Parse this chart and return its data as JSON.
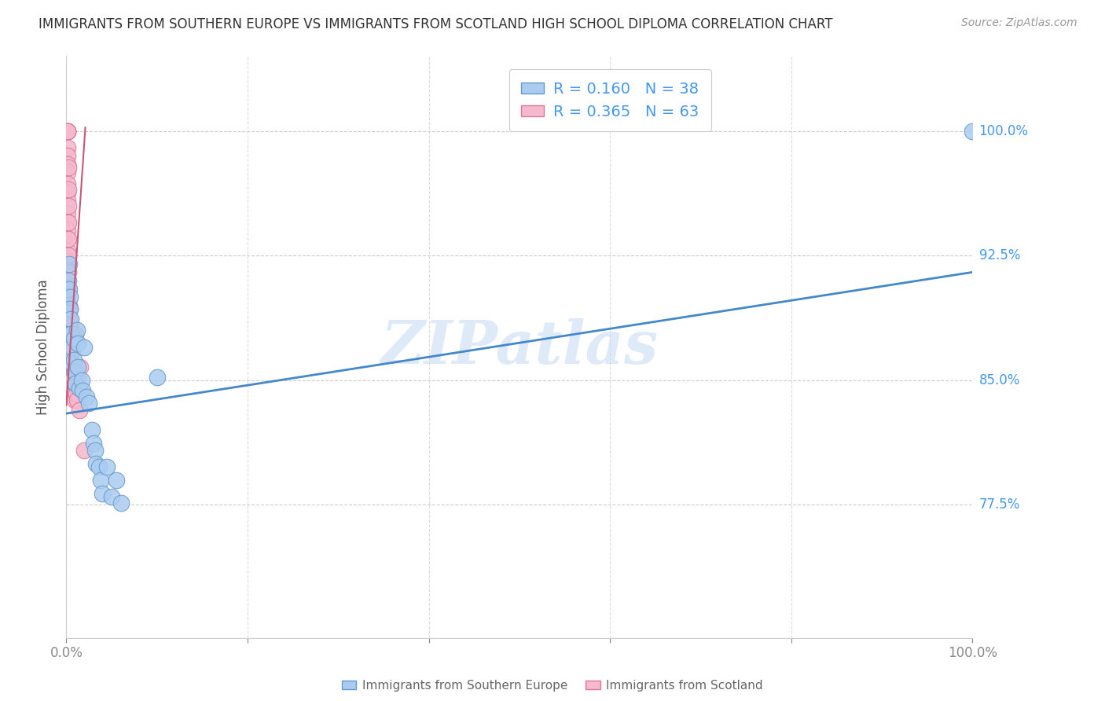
{
  "title": "IMMIGRANTS FROM SOUTHERN EUROPE VS IMMIGRANTS FROM SCOTLAND HIGH SCHOOL DIPLOMA CORRELATION CHART",
  "source": "Source: ZipAtlas.com",
  "ylabel": "High School Diploma",
  "watermark": "ZIPatlas",
  "blue_color": "#aaccf0",
  "pink_color": "#f5b8cc",
  "blue_edge_color": "#6699cc",
  "pink_edge_color": "#dd7799",
  "blue_line_color": "#4488cc",
  "pink_line_color": "#cc5577",
  "blue_scatter_x": [
    0.001,
    0.001,
    0.002,
    0.002,
    0.003,
    0.003,
    0.004,
    0.004,
    0.005,
    0.005,
    0.006,
    0.007,
    0.008,
    0.008,
    0.009,
    0.01,
    0.012,
    0.013,
    0.013,
    0.014,
    0.017,
    0.018,
    0.02,
    0.022,
    0.025,
    0.028,
    0.03,
    0.032,
    0.033,
    0.036,
    0.038,
    0.04,
    0.045,
    0.05,
    0.055,
    0.06,
    0.1,
    1.0
  ],
  "blue_scatter_y": [
    0.878,
    0.862,
    0.91,
    0.893,
    0.92,
    0.905,
    0.9,
    0.893,
    0.887,
    0.878,
    0.87,
    0.86,
    0.875,
    0.862,
    0.855,
    0.848,
    0.88,
    0.872,
    0.858,
    0.845,
    0.85,
    0.844,
    0.87,
    0.84,
    0.836,
    0.82,
    0.812,
    0.808,
    0.8,
    0.798,
    0.79,
    0.782,
    0.798,
    0.78,
    0.79,
    0.776,
    0.852,
    1.0
  ],
  "pink_scatter_x": [
    0.001,
    0.001,
    0.001,
    0.001,
    0.001,
    0.001,
    0.001,
    0.001,
    0.001,
    0.001,
    0.001,
    0.001,
    0.001,
    0.001,
    0.001,
    0.001,
    0.001,
    0.001,
    0.001,
    0.001,
    0.001,
    0.001,
    0.001,
    0.001,
    0.002,
    0.002,
    0.002,
    0.002,
    0.002,
    0.002,
    0.002,
    0.002,
    0.002,
    0.003,
    0.003,
    0.003,
    0.003,
    0.003,
    0.003,
    0.004,
    0.004,
    0.004,
    0.004,
    0.004,
    0.005,
    0.005,
    0.005,
    0.006,
    0.006,
    0.006,
    0.007,
    0.007,
    0.008,
    0.008,
    0.009,
    0.009,
    0.01,
    0.011,
    0.012,
    0.013,
    0.014,
    0.015,
    0.02
  ],
  "pink_scatter_y": [
    1.0,
    1.0,
    1.0,
    1.0,
    1.0,
    0.99,
    0.985,
    0.98,
    0.975,
    0.968,
    0.963,
    0.958,
    0.95,
    0.945,
    0.94,
    0.935,
    0.928,
    0.922,
    0.916,
    0.91,
    0.905,
    0.9,
    0.895,
    0.89,
    0.978,
    0.965,
    0.955,
    0.945,
    0.935,
    0.925,
    0.915,
    0.905,
    0.895,
    0.895,
    0.888,
    0.882,
    0.875,
    0.868,
    0.862,
    0.893,
    0.885,
    0.875,
    0.866,
    0.858,
    0.882,
    0.87,
    0.86,
    0.88,
    0.87,
    0.86,
    0.868,
    0.858,
    0.855,
    0.842,
    0.848,
    0.838,
    0.878,
    0.842,
    0.838,
    0.852,
    0.832,
    0.858,
    0.808
  ],
  "blue_line_x": [
    0.0,
    1.0
  ],
  "blue_line_y": [
    0.83,
    0.915
  ],
  "pink_line_x": [
    0.0,
    0.021
  ],
  "pink_line_y": [
    0.835,
    1.002
  ],
  "xlim": [
    0.0,
    1.0
  ],
  "ylim": [
    0.695,
    1.045
  ],
  "ytick_positions": [
    0.775,
    0.85,
    0.925,
    1.0
  ],
  "ytick_labels": [
    "77.5%",
    "85.0%",
    "92.5%",
    "100.0%"
  ],
  "xtick_positions": [
    0.0,
    0.2,
    0.4,
    0.6,
    0.8,
    1.0
  ],
  "xtick_labels": [
    "0.0%",
    "",
    "",
    "",
    "",
    "100.0%"
  ],
  "blue_R": 0.16,
  "blue_N": 38,
  "pink_R": 0.365,
  "pink_N": 63,
  "legend_color": "#4499ee",
  "ytick_color": "#4499ee",
  "xtick_color": "#888888",
  "title_fontsize": 12,
  "source_fontsize": 10,
  "axis_label_fontsize": 12,
  "tick_fontsize": 12,
  "legend_fontsize": 14,
  "watermark_fontsize": 55,
  "bottom_label_blue": "Immigrants from Southern Europe",
  "bottom_label_pink": "Immigrants from Scotland"
}
